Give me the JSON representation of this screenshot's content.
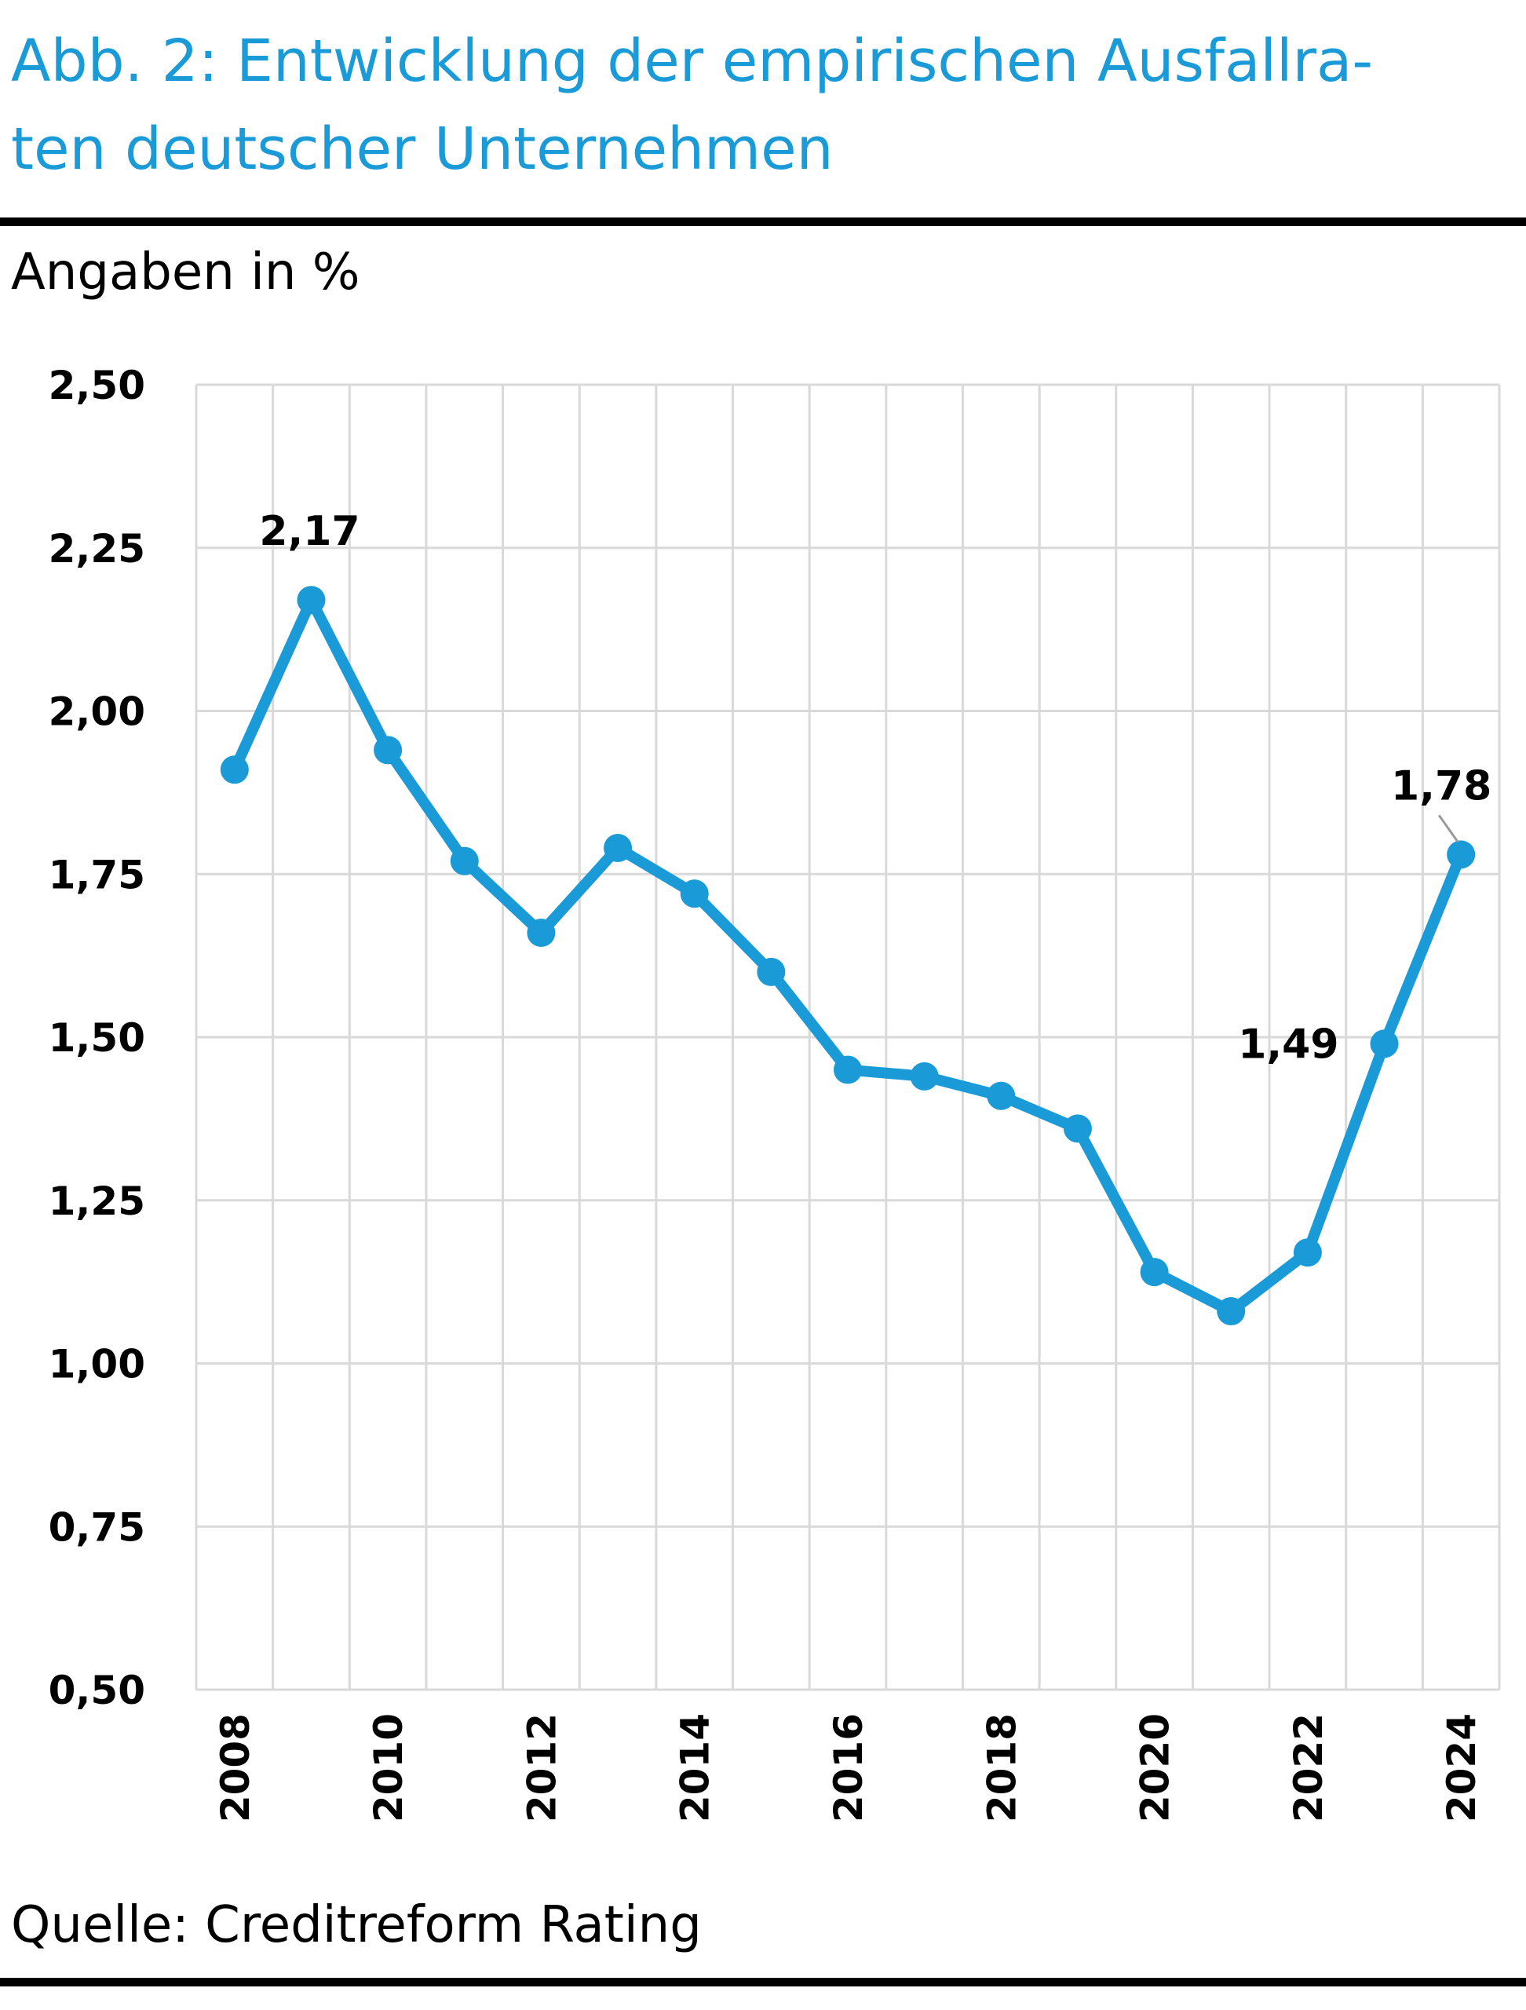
{
  "title": "Abb. 2: Entwicklung der empirischen Ausfallra-ten deutscher Unternehmen",
  "title_lines": [
    "Abb. 2: Entwicklung der empirischen Ausfallra-",
    "ten deutscher Unternehmen"
  ],
  "unit_label": "Angaben in %",
  "source": "Quelle: Creditreform Rating",
  "colors": {
    "title": "#1a9ad6",
    "line": "#1a9ad6",
    "grid": "#d9d9d9",
    "rule": "#000000"
  },
  "chart_data": {
    "type": "line",
    "title": "Abb. 2: Entwicklung der empirischen Ausfallraten deutscher Unternehmen",
    "ylabel": "Angaben in %",
    "ylim": [
      0.5,
      2.5
    ],
    "yticks": [
      "0,50",
      "0,75",
      "1,00",
      "1,25",
      "1,50",
      "1,75",
      "2,00",
      "2,25",
      "2,50"
    ],
    "ytick_values": [
      0.5,
      0.75,
      1.0,
      1.25,
      1.5,
      1.75,
      2.0,
      2.25,
      2.5
    ],
    "xtick_labels": [
      "2008",
      "2010",
      "2012",
      "2014",
      "2016",
      "2018",
      "2020",
      "2022",
      "2024"
    ],
    "grid": true,
    "x": [
      2008,
      2009,
      2010,
      2011,
      2012,
      2013,
      2014,
      2015,
      2016,
      2017,
      2018,
      2019,
      2020,
      2021,
      2022,
      2023,
      2024
    ],
    "series": [
      {
        "values": [
          1.91,
          2.17,
          1.94,
          1.77,
          1.66,
          1.79,
          1.72,
          1.6,
          1.45,
          1.44,
          1.41,
          1.36,
          1.14,
          1.08,
          1.17,
          1.49,
          1.78
        ]
      }
    ],
    "data_labels": [
      {
        "x": 2009,
        "text": "2,17",
        "position": "above"
      },
      {
        "x": 2023,
        "text": "1,49",
        "position": "left"
      },
      {
        "x": 2024,
        "text": "1,78",
        "position": "above-left",
        "leader_line": true
      }
    ]
  }
}
